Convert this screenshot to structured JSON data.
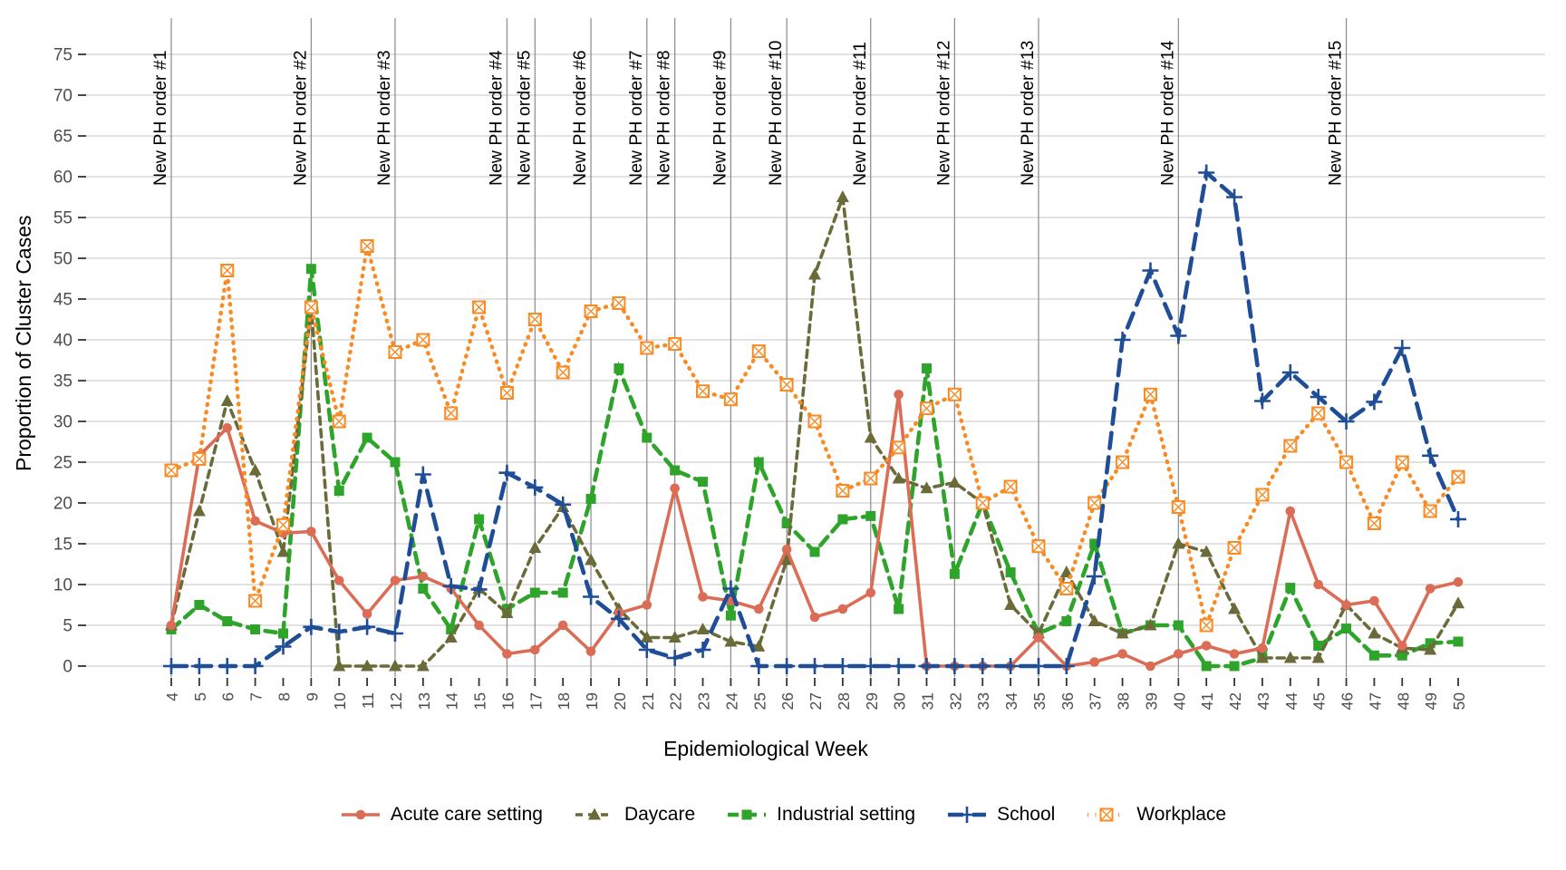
{
  "chart_data": {
    "type": "line",
    "title": "",
    "xlabel": "Epidemiological Week",
    "ylabel": "Proportion of Cluster Cases",
    "x": [
      4,
      5,
      6,
      7,
      8,
      9,
      10,
      11,
      12,
      13,
      14,
      15,
      16,
      17,
      18,
      19,
      20,
      21,
      22,
      23,
      24,
      25,
      26,
      27,
      28,
      29,
      30,
      31,
      32,
      33,
      34,
      35,
      36,
      37,
      38,
      39,
      40,
      41,
      42,
      43,
      44,
      45,
      46,
      47,
      48,
      49,
      50
    ],
    "ylim": [
      0,
      75
    ],
    "ytick_step": 5,
    "yticks": [
      0,
      5,
      10,
      15,
      20,
      25,
      30,
      35,
      40,
      45,
      50,
      55,
      60,
      65,
      70,
      75
    ],
    "grid": "horizontal",
    "legend_position": "bottom",
    "annotations": [
      {
        "label": "New PH order #1",
        "week": 4
      },
      {
        "label": "New PH order #2",
        "week": 9
      },
      {
        "label": "New PH order #3",
        "week": 12
      },
      {
        "label": "New PH order #4",
        "week": 16
      },
      {
        "label": "New PH order #5",
        "week": 17
      },
      {
        "label": "New PH order #6",
        "week": 19
      },
      {
        "label": "New PH order #7",
        "week": 21
      },
      {
        "label": "New PH order #8",
        "week": 22
      },
      {
        "label": "New PH order #9",
        "week": 24
      },
      {
        "label": "New PH order #10",
        "week": 26
      },
      {
        "label": "New PH order #11",
        "week": 29
      },
      {
        "label": "New PH order #12",
        "week": 32
      },
      {
        "label": "New PH order #13",
        "week": 35
      },
      {
        "label": "New PH order #14",
        "week": 40
      },
      {
        "label": "New PH order #15",
        "week": 46
      }
    ],
    "series": [
      {
        "name": "Acute care setting",
        "color": "#db6c55",
        "line": "solid",
        "marker": "circle",
        "values": [
          5,
          25.8,
          29.2,
          17.8,
          16.3,
          16.5,
          10.5,
          6.4,
          10.5,
          11,
          9.5,
          5,
          1.5,
          2,
          5,
          1.8,
          6.5,
          7.5,
          21.8,
          8.5,
          8,
          7,
          14.3,
          6,
          7,
          9,
          33.3,
          0,
          0,
          0,
          0,
          3.5,
          0,
          0.5,
          1.5,
          0,
          1.5,
          2.5,
          1.5,
          2.2,
          19,
          10,
          7.5,
          8,
          2.5,
          9.5,
          10.3
        ]
      },
      {
        "name": "Daycare",
        "color": "#6b6b3a",
        "line": "dashed",
        "marker": "triangle",
        "values": [
          5,
          19,
          32.5,
          24,
          14,
          44,
          0,
          0,
          0,
          0,
          3.5,
          9.5,
          6.5,
          14.5,
          19.5,
          13,
          7,
          3.5,
          3.5,
          4.5,
          3,
          2.4,
          13,
          48,
          57.5,
          28,
          23,
          21.8,
          22.5,
          20,
          7.5,
          4,
          11.5,
          5.5,
          4,
          5,
          15,
          14,
          7,
          1,
          1,
          1,
          7.5,
          4,
          2.2,
          2,
          7.7
        ]
      },
      {
        "name": "Industrial setting",
        "color": "#2fa42b",
        "line": "longdash",
        "marker": "square",
        "values": [
          4.5,
          7.5,
          5.5,
          4.5,
          4,
          48.7,
          21.5,
          28,
          25,
          9.5,
          4.5,
          18,
          7,
          9,
          9,
          20.5,
          36.5,
          28,
          24,
          22.6,
          6.2,
          25,
          17.5,
          14,
          18,
          18.4,
          7,
          36.5,
          11.3,
          20,
          11.5,
          4,
          5.5,
          15,
          4,
          5,
          5,
          0,
          0,
          1,
          9.6,
          2.5,
          4.6,
          1.3,
          1.3,
          2.8,
          3
        ]
      },
      {
        "name": "School",
        "color": "#1f4e96",
        "line": "dash",
        "marker": "plus",
        "values": [
          0,
          0,
          0,
          0,
          2.4,
          4.8,
          4.2,
          4.8,
          4,
          23.5,
          9.8,
          9.4,
          23.7,
          21.9,
          19.8,
          8.5,
          5.8,
          2,
          1,
          2,
          9.5,
          0,
          0,
          0,
          0,
          0,
          0,
          0,
          0,
          0,
          0,
          0,
          0,
          11,
          40,
          48.5,
          40.5,
          60.5,
          57.5,
          32.5,
          36,
          33,
          30,
          32.4,
          39,
          25.8,
          18
        ]
      },
      {
        "name": "Workplace",
        "color": "#f88b24",
        "line": "dotted",
        "marker": "crossed-square",
        "values": [
          24,
          25.4,
          48.5,
          8,
          17.3,
          44,
          30,
          51.5,
          38.5,
          40,
          31,
          44,
          33.5,
          42.5,
          36,
          43.5,
          44.5,
          39,
          39.5,
          33.7,
          32.7,
          38.6,
          34.5,
          30,
          21.5,
          23,
          26.8,
          31.6,
          33.3,
          20,
          22,
          14.7,
          9.5,
          20,
          25,
          33.3,
          19.5,
          5,
          14.5,
          21,
          27,
          31,
          25,
          17.5,
          25,
          19,
          23.2
        ]
      }
    ]
  }
}
